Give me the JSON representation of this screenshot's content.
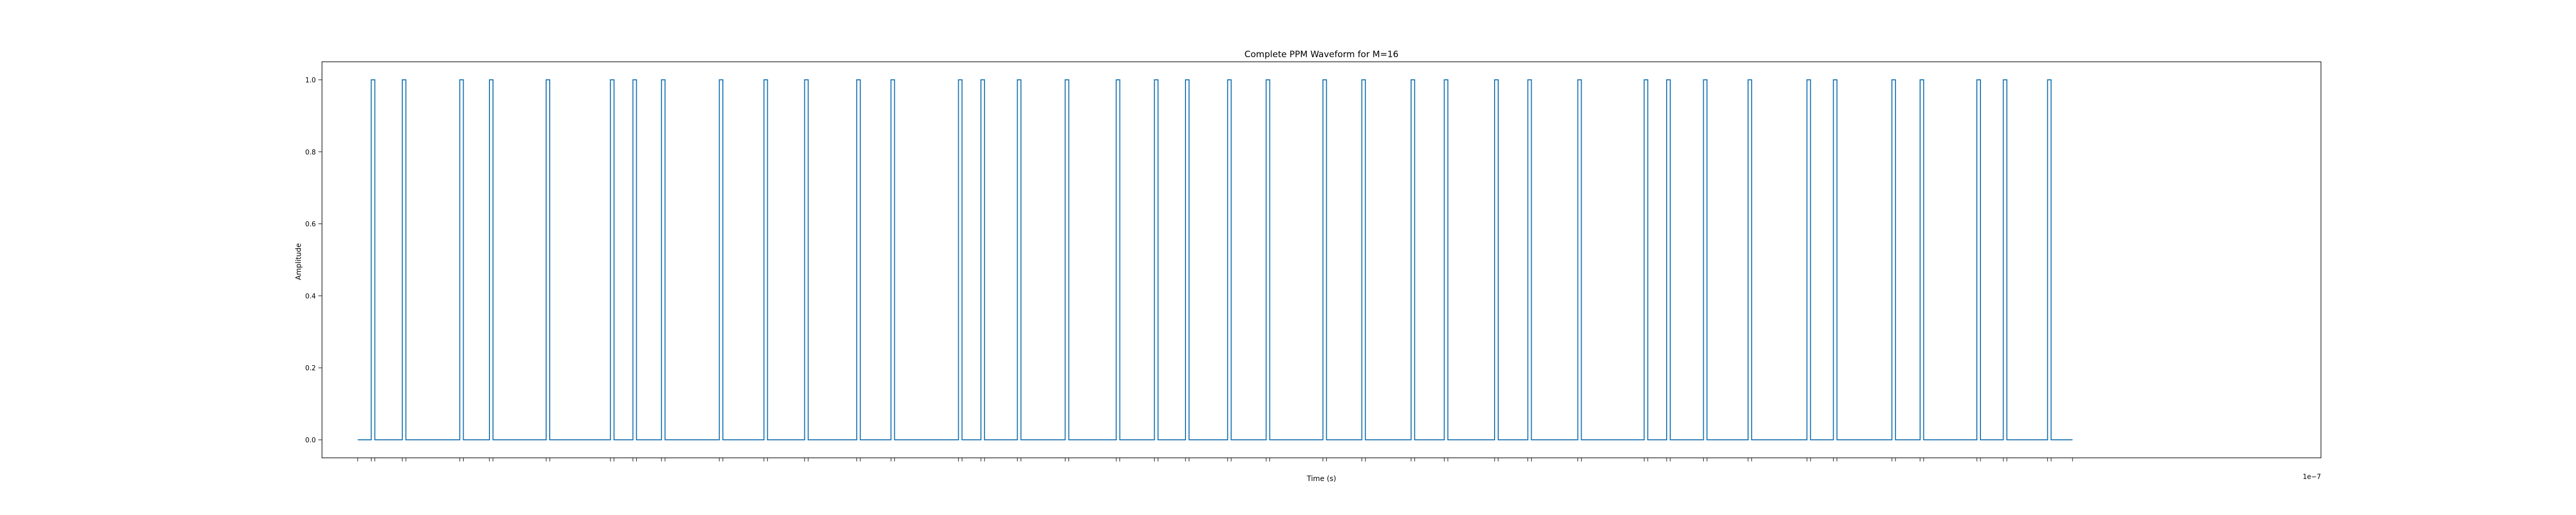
{
  "chart_data": {
    "type": "line",
    "title": "Complete PPM Waveform for M=16",
    "xlabel": "Time (s)",
    "ylabel": "Amplitude",
    "x_offset_label": "1e−7",
    "ylim": [
      -0.05,
      1.05
    ],
    "xlim": [
      -0.1,
      5.5
    ],
    "y_ticks": [
      0.0,
      0.2,
      0.4,
      0.6,
      0.8,
      1.0
    ],
    "y_tick_labels": [
      "0.0",
      "0.2",
      "0.4",
      "0.6",
      "0.8",
      "1.0"
    ],
    "grid": false,
    "series_color": "#1f77b4",
    "pulse_width": 0.01,
    "pulses": [
      0.038,
      0.125,
      0.286,
      0.369,
      0.528,
      0.708,
      0.771,
      0.851,
      1.013,
      1.138,
      1.252,
      1.398,
      1.494,
      1.683,
      1.746,
      1.848,
      1.982,
      2.125,
      2.232,
      2.319,
      2.437,
      2.545,
      2.704,
      2.813,
      2.951,
      3.044,
      3.185,
      3.278,
      3.418,
      3.604,
      3.667,
      3.77,
      3.895,
      4.06,
      4.134,
      4.298,
      4.377,
      4.536,
      4.61,
      4.734
    ]
  }
}
